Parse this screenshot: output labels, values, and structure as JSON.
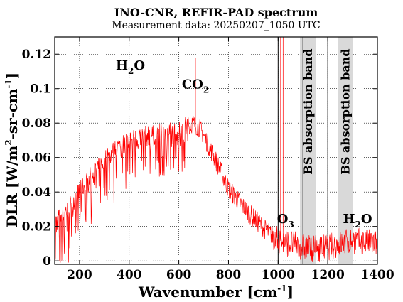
{
  "chart_data": {
    "type": "line",
    "title": "INO-CNR, REFIR-PAD spectrum",
    "subtitle": "Measurement data: 20250207_1050 UTC",
    "xlabel": {
      "main": "Wavenumber [cm",
      "sup": "-1",
      "end": "]"
    },
    "ylabel": {
      "p1": "DLR [W/m",
      "sup1": "2",
      "p2": "-sr-cm",
      "sup2": "-1",
      "p3": "]"
    },
    "xlim": [
      100,
      1400
    ],
    "ylim": [
      -0.002,
      0.13
    ],
    "xticks": [
      200,
      400,
      600,
      800,
      1000,
      1200,
      1400
    ],
    "xtick_labels": [
      "200",
      "400",
      "600",
      "800",
      "1000",
      "1200",
      "1400"
    ],
    "yticks": [
      0,
      0.02,
      0.04,
      0.06,
      0.08,
      0.1,
      0.12
    ],
    "ytick_labels": [
      "0",
      "0.02",
      "0.04",
      "0.06",
      "0.08",
      "0.1",
      "0.12"
    ],
    "grid": true,
    "series_color": "#ff0000",
    "band_color": "#d9d9d9",
    "bands": [
      {
        "x0": 1088,
        "x1": 1152,
        "label": "BS absorption band"
      },
      {
        "x0": 1240,
        "x1": 1300,
        "label": "BS absorption band"
      }
    ],
    "vlines": [
      1000,
      1100,
      1200
    ],
    "envelope": [
      [
        100,
        0.022
      ],
      [
        150,
        0.03
      ],
      [
        200,
        0.04
      ],
      [
        250,
        0.05
      ],
      [
        300,
        0.058
      ],
      [
        350,
        0.066
      ],
      [
        400,
        0.07
      ],
      [
        450,
        0.072
      ],
      [
        500,
        0.073
      ],
      [
        550,
        0.074
      ],
      [
        600,
        0.076
      ],
      [
        650,
        0.08
      ],
      [
        680,
        0.078
      ],
      [
        700,
        0.073
      ],
      [
        750,
        0.058
      ],
      [
        800,
        0.042
      ],
      [
        850,
        0.033
      ],
      [
        900,
        0.025
      ],
      [
        950,
        0.018
      ],
      [
        1000,
        0.012
      ],
      [
        1050,
        0.01
      ],
      [
        1100,
        0.008
      ],
      [
        1150,
        0.007
      ],
      [
        1200,
        0.008
      ],
      [
        1250,
        0.01
      ],
      [
        1300,
        0.012
      ],
      [
        1350,
        0.011
      ],
      [
        1400,
        0.01
      ]
    ],
    "spikes": [
      {
        "x": 667,
        "y": 0.118
      },
      {
        "x": 1010,
        "y": 0.13
      },
      {
        "x": 1020,
        "y": 0.13
      },
      {
        "x": 1290,
        "y": 0.13
      },
      {
        "x": 1330,
        "y": 0.13
      }
    ],
    "annotations": [
      {
        "base": "H",
        "sub": "2",
        "tail": "O",
        "x": 405,
        "y": 0.111
      },
      {
        "base": "CO",
        "sub": "2",
        "tail": "",
        "x": 667,
        "y": 0.1
      },
      {
        "base": "O",
        "sub": "3",
        "tail": "",
        "x": 1030,
        "y": 0.022
      },
      {
        "base": "H",
        "sub": "2",
        "tail": "O",
        "x": 1320,
        "y": 0.022
      }
    ]
  }
}
